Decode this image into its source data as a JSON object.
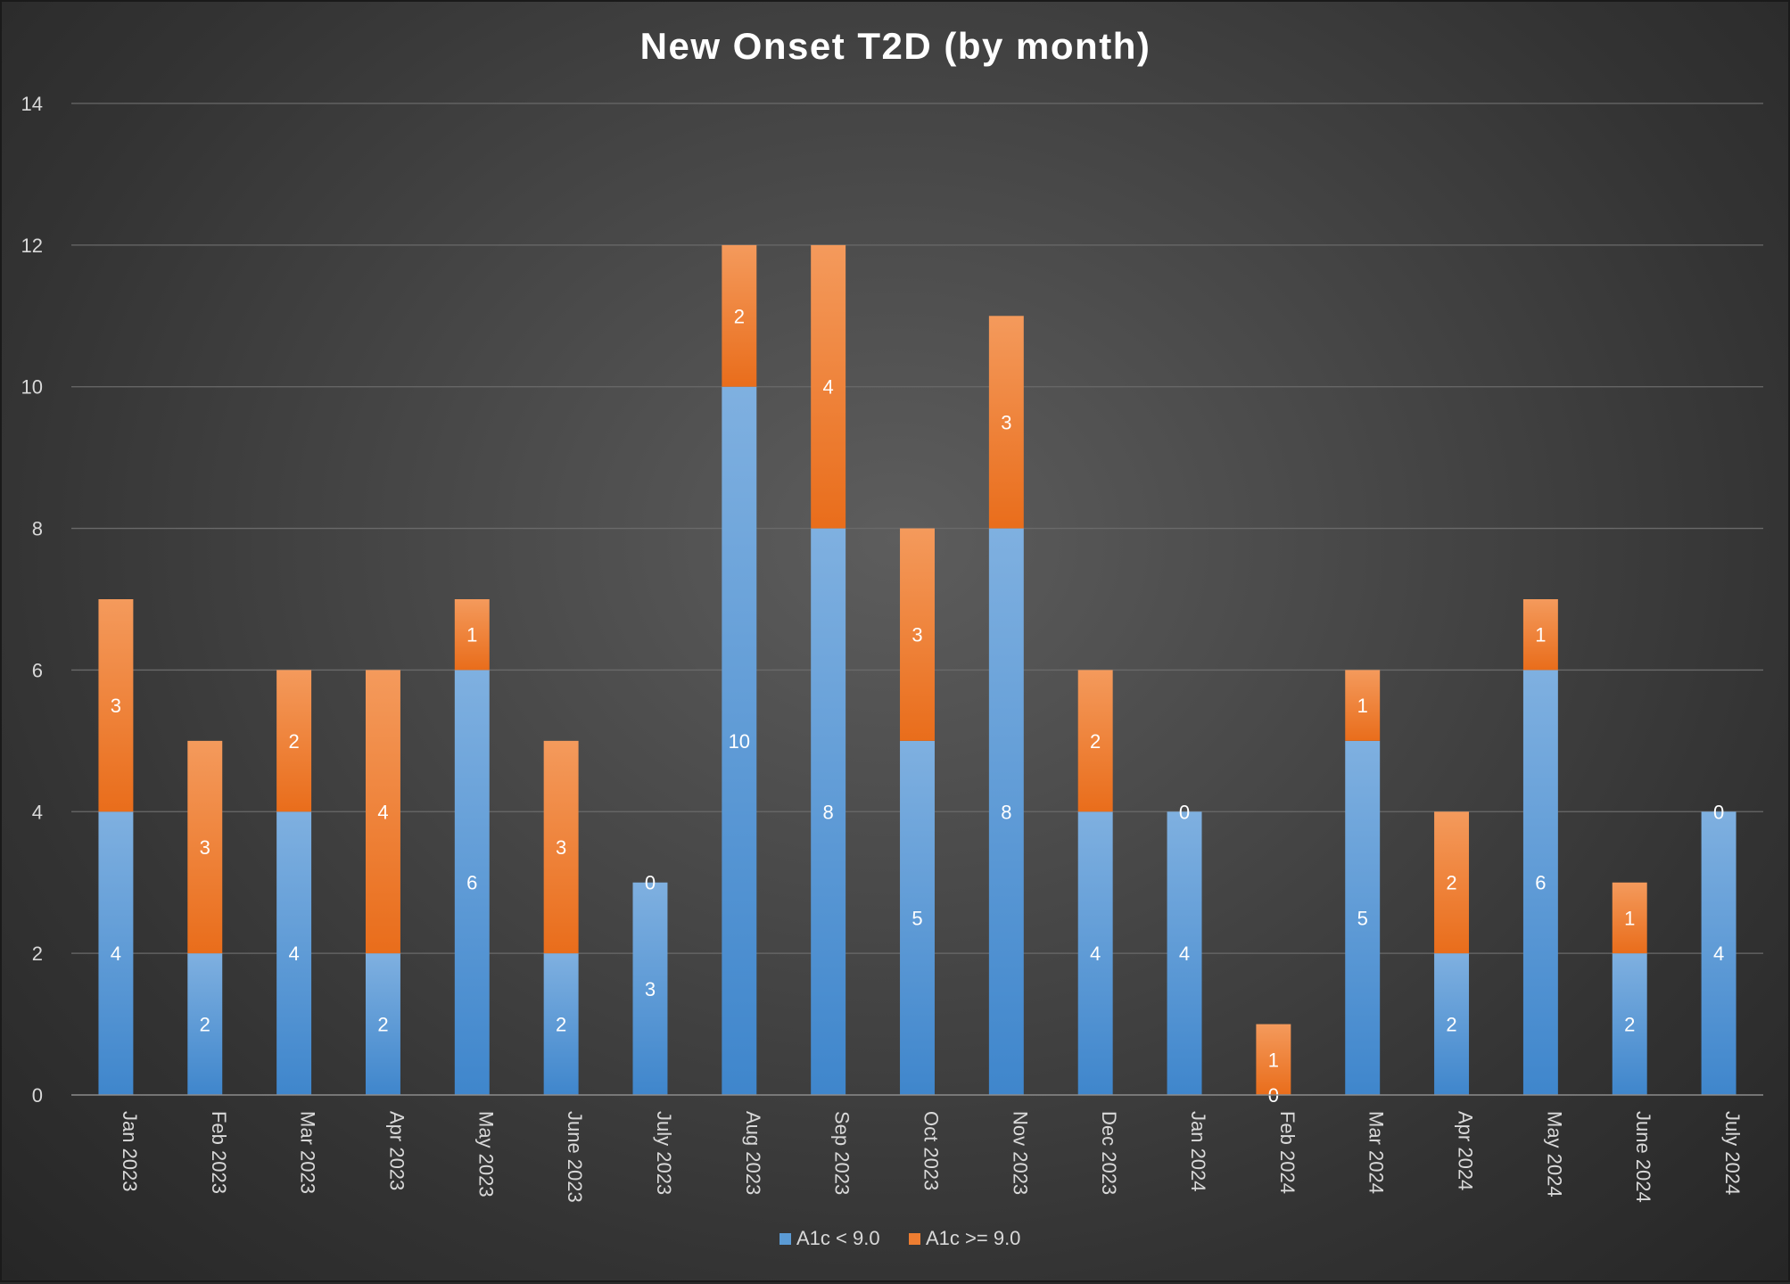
{
  "chart_data": {
    "type": "bar",
    "stacked": true,
    "title": "New Onset T2D (by month)",
    "xlabel": "",
    "ylabel": "",
    "ylim": [
      0,
      14
    ],
    "yticks": [
      0,
      2,
      4,
      6,
      8,
      10,
      12,
      14
    ],
    "grid": true,
    "legend_position": "bottom",
    "categories": [
      "Jan 2023",
      "Feb 2023",
      "Mar 2023",
      "Apr 2023",
      "May 2023",
      "June 2023",
      "July 2023",
      "Aug 2023",
      "Sep 2023",
      "Oct 2023",
      "Nov 2023",
      "Dec 2023",
      "Jan 2024",
      "Feb 2024",
      "Mar 2024",
      "Apr 2024",
      "May 2024",
      "June 2024",
      "July 2024"
    ],
    "series": [
      {
        "name": "A1c < 9.0",
        "color": "#5b9bd5",
        "values": [
          4,
          2,
          4,
          2,
          6,
          2,
          3,
          10,
          8,
          5,
          8,
          4,
          4,
          0,
          5,
          2,
          6,
          2,
          4
        ]
      },
      {
        "name": "A1c >= 9.0",
        "color": "#ed7d31",
        "values": [
          3,
          3,
          2,
          4,
          1,
          3,
          0,
          2,
          4,
          3,
          3,
          2,
          0,
          1,
          1,
          2,
          1,
          1,
          0
        ]
      }
    ]
  }
}
